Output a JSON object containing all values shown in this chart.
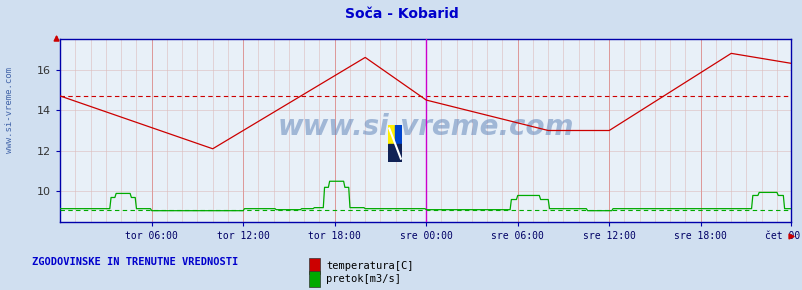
{
  "title": "Soča - Kobarid",
  "title_color": "#0000cc",
  "bg_color": "#d0dff0",
  "plot_bg_color": "#e8f0f8",
  "grid_color_major": "#dd9999",
  "grid_color_minor": "#ddbbbb",
  "xlabel_color": "#000066",
  "ylabel_values": [
    10,
    12,
    14,
    16
  ],
  "ylim": [
    8.5,
    17.5
  ],
  "n_points": 576,
  "xtick_labels": [
    "tor 06:00",
    "tor 12:00",
    "tor 18:00",
    "sre 00:00",
    "sre 06:00",
    "sre 12:00",
    "sre 18:00",
    "čet 00:00"
  ],
  "xtick_positions": [
    72,
    144,
    216,
    288,
    360,
    432,
    504,
    575
  ],
  "vline_pos": 288,
  "vline_color": "#cc00cc",
  "temp_color": "#cc0000",
  "temp_avg_color": "#cc0000",
  "flow_color": "#00aa00",
  "flow_avg_color": "#00aa00",
  "watermark": "www.si-vreme.com",
  "watermark_color": "#6688bb",
  "left_label": "www.si-vreme.com",
  "left_label_color": "#4466aa",
  "bottom_label": "ZGODOVINSKE IN TRENUTNE VREDNOSTI",
  "bottom_label_color": "#0000cc",
  "legend_temp": "temperatura[C]",
  "legend_flow": "pretok[m3/s]",
  "temp_avg": 14.7,
  "flow_avg": 9.1
}
